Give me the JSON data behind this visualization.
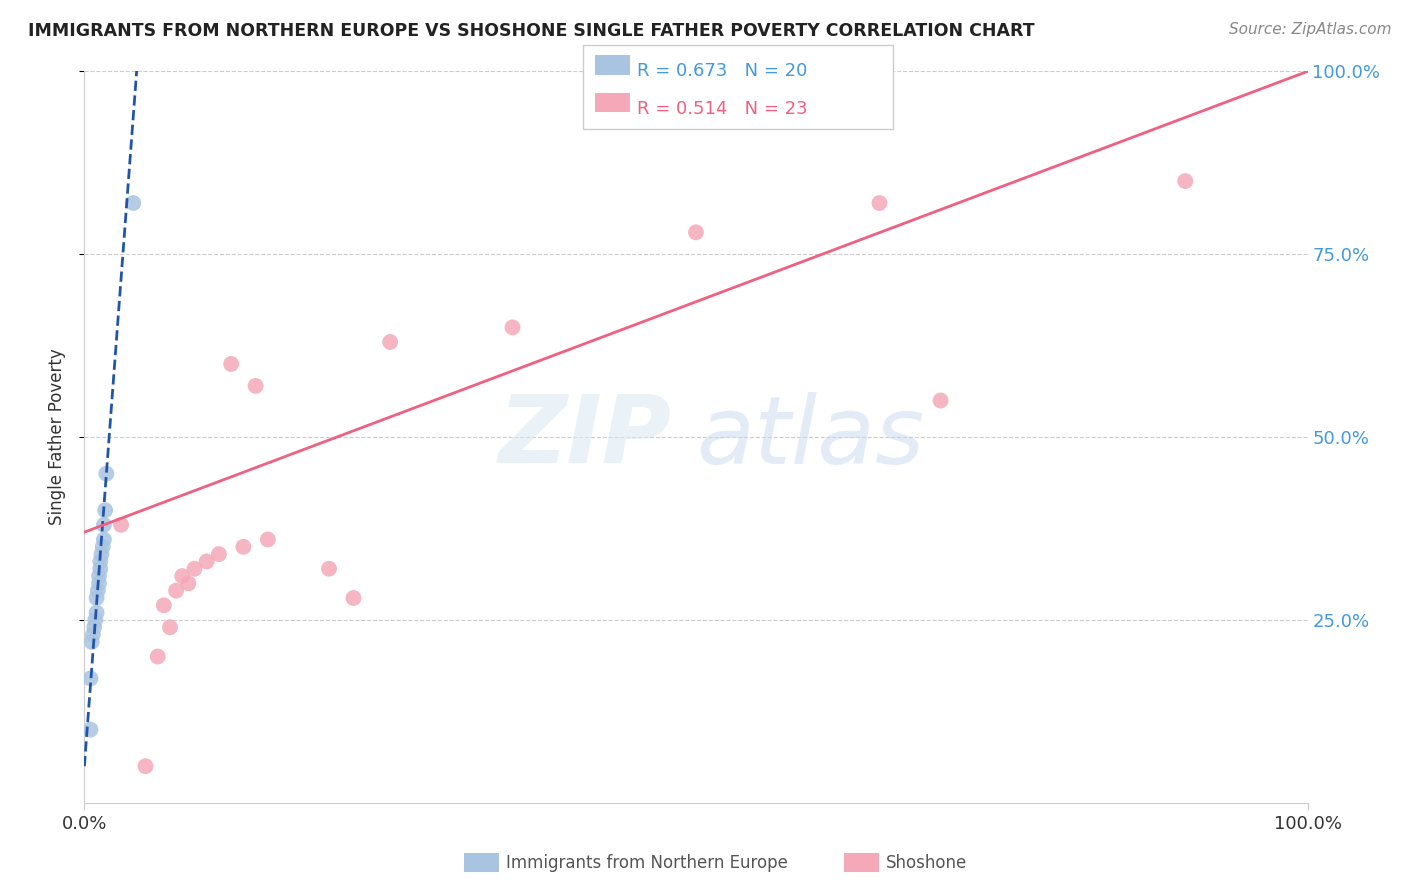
{
  "title": "IMMIGRANTS FROM NORTHERN EUROPE VS SHOSHONE SINGLE FATHER POVERTY CORRELATION CHART",
  "source": "Source: ZipAtlas.com",
  "ylabel": "Single Father Poverty",
  "legend_blue_r": "R = 0.673",
  "legend_blue_n": "N = 20",
  "legend_pink_r": "R = 0.514",
  "legend_pink_n": "N = 23",
  "legend_label_blue": "Immigrants from Northern Europe",
  "legend_label_pink": "Shoshone",
  "blue_color": "#a8c4e0",
  "pink_color": "#f4a8b8",
  "blue_line_color": "#2255aa",
  "pink_line_color": "#f06080",
  "blue_scatter_x": [
    0.5,
    0.5,
    0.6,
    0.7,
    0.8,
    0.9,
    1.0,
    1.0,
    1.1,
    1.2,
    1.2,
    1.3,
    1.3,
    1.4,
    1.5,
    1.6,
    1.6,
    1.7,
    1.8,
    4.0
  ],
  "blue_scatter_y": [
    10.0,
    17.0,
    22.0,
    23.0,
    24.0,
    25.0,
    26.0,
    28.0,
    29.0,
    30.0,
    31.0,
    32.0,
    33.0,
    34.0,
    35.0,
    36.0,
    38.0,
    40.0,
    45.0,
    82.0
  ],
  "pink_scatter_x": [
    5.0,
    6.0,
    7.0,
    6.5,
    7.5,
    8.0,
    9.0,
    10.0,
    11.0,
    13.0,
    15.0,
    20.0,
    22.0,
    3.0,
    8.5,
    14.0,
    12.0,
    25.0,
    35.0,
    50.0,
    65.0,
    70.0,
    90.0
  ],
  "pink_scatter_y": [
    5.0,
    20.0,
    24.0,
    27.0,
    29.0,
    31.0,
    32.0,
    33.0,
    34.0,
    35.0,
    36.0,
    32.0,
    28.0,
    38.0,
    30.0,
    57.0,
    60.0,
    63.0,
    65.0,
    78.0,
    82.0,
    55.0,
    85.0
  ],
  "blue_line_x": [
    0.0,
    4.5
  ],
  "blue_line_y": [
    5.0,
    105.0
  ],
  "pink_line_x": [
    0.0,
    100.0
  ],
  "pink_line_y": [
    37.0,
    100.0
  ],
  "xlim": [
    0,
    100
  ],
  "ylim": [
    0,
    100
  ],
  "xticks": [
    0,
    100
  ],
  "xticklabels": [
    "0.0%",
    "100.0%"
  ],
  "yticks_right": [
    25,
    50,
    75,
    100
  ],
  "yticklabels_right": [
    "25.0%",
    "50.0%",
    "75.0%",
    "100.0%"
  ]
}
